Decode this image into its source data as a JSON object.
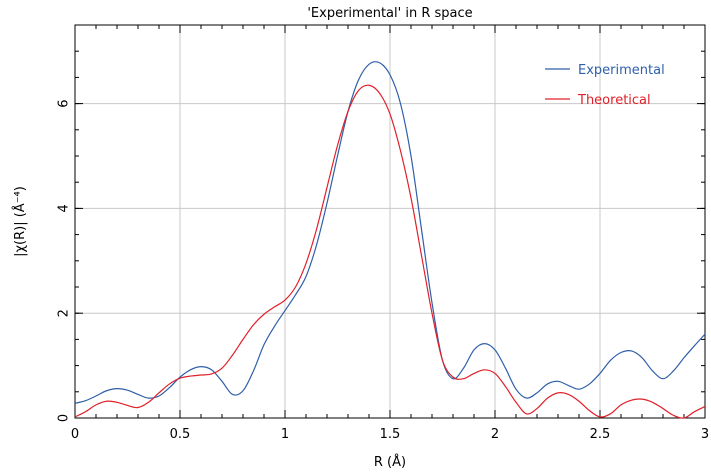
{
  "chart_data": {
    "type": "line",
    "title": "'Experimental' in R space",
    "xlabel": "R (Å)",
    "ylabel": "|χ(R)| (Å⁻⁴)",
    "xlim": [
      0,
      3
    ],
    "ylim": [
      0,
      7.5
    ],
    "x_ticks": [
      0,
      0.5,
      1,
      1.5,
      2,
      2.5,
      3
    ],
    "x_tick_labels": [
      "0",
      "0.5",
      "1",
      "1.5",
      "2",
      "2.5",
      "3"
    ],
    "y_ticks": [
      0,
      2,
      4,
      6
    ],
    "y_tick_labels": [
      "0",
      "2",
      "4",
      "6"
    ],
    "grid": true,
    "legend_position": "top-right",
    "series": [
      {
        "name": "Experimental",
        "color": "#2f5faa",
        "x": [
          0.0,
          0.05,
          0.1,
          0.15,
          0.2,
          0.25,
          0.3,
          0.35,
          0.4,
          0.45,
          0.5,
          0.55,
          0.6,
          0.65,
          0.7,
          0.75,
          0.8,
          0.85,
          0.9,
          0.95,
          1.0,
          1.05,
          1.1,
          1.15,
          1.2,
          1.25,
          1.3,
          1.35,
          1.4,
          1.45,
          1.5,
          1.55,
          1.6,
          1.65,
          1.7,
          1.75,
          1.8,
          1.85,
          1.9,
          1.95,
          2.0,
          2.05,
          2.1,
          2.15,
          2.2,
          2.25,
          2.3,
          2.35,
          2.4,
          2.45,
          2.5,
          2.55,
          2.6,
          2.65,
          2.7,
          2.75,
          2.8,
          2.85,
          2.9,
          2.95,
          3.0
        ],
        "y": [
          0.28,
          0.33,
          0.42,
          0.52,
          0.56,
          0.53,
          0.45,
          0.38,
          0.42,
          0.58,
          0.78,
          0.92,
          0.98,
          0.92,
          0.7,
          0.45,
          0.52,
          0.9,
          1.4,
          1.75,
          2.05,
          2.35,
          2.7,
          3.3,
          4.1,
          5.0,
          5.85,
          6.45,
          6.75,
          6.78,
          6.55,
          6.0,
          5.0,
          3.6,
          2.2,
          1.1,
          0.75,
          0.95,
          1.3,
          1.42,
          1.3,
          0.95,
          0.55,
          0.38,
          0.48,
          0.65,
          0.7,
          0.62,
          0.55,
          0.65,
          0.85,
          1.1,
          1.25,
          1.28,
          1.15,
          0.9,
          0.75,
          0.9,
          1.15,
          1.38,
          1.6
        ]
      },
      {
        "name": "Theoretical",
        "color": "#e0202a",
        "x": [
          0.0,
          0.05,
          0.1,
          0.15,
          0.2,
          0.25,
          0.3,
          0.35,
          0.4,
          0.45,
          0.5,
          0.55,
          0.6,
          0.65,
          0.7,
          0.75,
          0.8,
          0.85,
          0.9,
          0.95,
          1.0,
          1.05,
          1.1,
          1.15,
          1.2,
          1.25,
          1.3,
          1.35,
          1.4,
          1.45,
          1.5,
          1.55,
          1.6,
          1.65,
          1.7,
          1.75,
          1.8,
          1.85,
          1.9,
          1.95,
          2.0,
          2.05,
          2.1,
          2.15,
          2.2,
          2.25,
          2.3,
          2.35,
          2.4,
          2.45,
          2.5,
          2.55,
          2.6,
          2.65,
          2.7,
          2.75,
          2.8,
          2.85,
          2.9,
          2.95,
          3.0
        ],
        "y": [
          0.02,
          0.12,
          0.25,
          0.32,
          0.3,
          0.24,
          0.2,
          0.3,
          0.48,
          0.65,
          0.76,
          0.8,
          0.82,
          0.84,
          0.95,
          1.2,
          1.5,
          1.78,
          1.98,
          2.12,
          2.25,
          2.5,
          2.95,
          3.6,
          4.4,
          5.2,
          5.85,
          6.25,
          6.35,
          6.2,
          5.8,
          5.1,
          4.2,
          3.1,
          2.0,
          1.1,
          0.78,
          0.75,
          0.85,
          0.92,
          0.85,
          0.6,
          0.3,
          0.08,
          0.18,
          0.38,
          0.48,
          0.45,
          0.32,
          0.14,
          0.02,
          0.08,
          0.25,
          0.34,
          0.36,
          0.3,
          0.18,
          0.05,
          0.0,
          0.12,
          0.22
        ]
      }
    ]
  }
}
